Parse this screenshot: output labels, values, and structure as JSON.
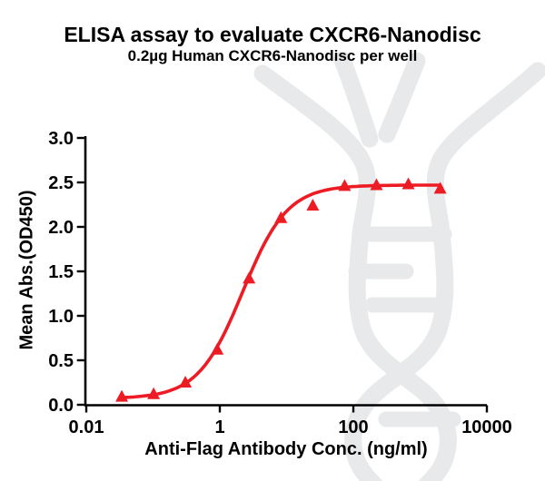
{
  "header": {
    "title": "ELISA assay to evaluate CXCR6-Nanodisc",
    "subtitle": "0.2µg Human CXCR6-Nanodisc per well"
  },
  "chart_data": {
    "type": "scatter",
    "title": "ELISA assay to evaluate CXCR6-Nanodisc",
    "subtitle": "0.2µg Human CXCR6-Nanodisc per well",
    "x_label": "Anti-Flag Antibody Conc. (ng/ml)",
    "y_label": "Mean Abs.(OD450)",
    "x_scale": "log",
    "xlim": [
      0.01,
      10000
    ],
    "ylim": [
      0.0,
      3.0
    ],
    "grid": false,
    "legend": "none",
    "x_ticks": [
      {
        "value": 0.01,
        "label": "0.01"
      },
      {
        "value": 1,
        "label": "1"
      },
      {
        "value": 100,
        "label": "100"
      },
      {
        "value": 10000,
        "label": "10000"
      }
    ],
    "y_ticks": [
      {
        "value": 0.0,
        "label": "0.0"
      },
      {
        "value": 0.5,
        "label": "0.5"
      },
      {
        "value": 1.0,
        "label": "1.0"
      },
      {
        "value": 1.5,
        "label": "1.5"
      },
      {
        "value": 2.0,
        "label": "2.0"
      },
      {
        "value": 2.5,
        "label": "2.5"
      },
      {
        "value": 3.0,
        "label": "3.0"
      }
    ],
    "series": [
      {
        "marker": "filled-triangle",
        "color": "#ED1C24",
        "points": [
          {
            "x": 0.034,
            "y": 0.09
          },
          {
            "x": 0.102,
            "y": 0.12
          },
          {
            "x": 0.305,
            "y": 0.25
          },
          {
            "x": 0.915,
            "y": 0.62
          },
          {
            "x": 2.74,
            "y": 1.42
          },
          {
            "x": 8.23,
            "y": 2.1
          },
          {
            "x": 24.7,
            "y": 2.24
          },
          {
            "x": 74.1,
            "y": 2.46
          },
          {
            "x": 222.2,
            "y": 2.47
          },
          {
            "x": 666.7,
            "y": 2.48
          },
          {
            "x": 2000,
            "y": 2.43
          }
        ]
      }
    ],
    "fit_curve": {
      "model": "4PL",
      "bottom": 0.07,
      "top": 2.47,
      "ec50": 2.2,
      "hill": 1.3,
      "color": "#ED1C24"
    },
    "axis_color": "#000000"
  },
  "watermark": {
    "name": "dna-helix-logo",
    "color": "#E8E9EA"
  }
}
